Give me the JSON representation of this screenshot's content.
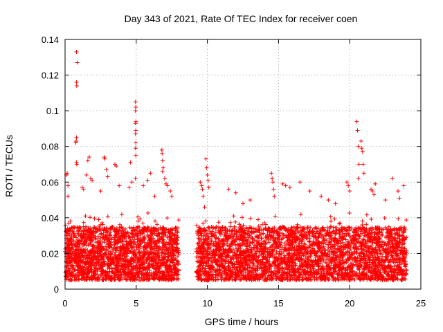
{
  "chart_data": {
    "type": "scatter",
    "title": "Day 343 of 2021, Rate Of TEC Index for receiver coen",
    "xlabel": "GPS time / hours",
    "ylabel": "ROTI / TECUs",
    "xlim": [
      0,
      25
    ],
    "ylim": [
      0,
      0.14
    ],
    "xticks": [
      0,
      5,
      10,
      15,
      20,
      25
    ],
    "yticks": [
      0,
      0.02,
      0.04,
      0.06,
      0.08,
      0.1,
      0.12,
      0.14
    ],
    "xtick_labels": [
      "0",
      "5",
      "10",
      "15",
      "20",
      "25"
    ],
    "ytick_labels": [
      "0",
      "0.02",
      "0.04",
      "0.06",
      "0.08",
      "0.1",
      "0.12",
      "0.14"
    ],
    "grid": true,
    "marker": "+",
    "color": "#ff0000",
    "data_gap_hours": [
      8.0,
      9.2
    ],
    "dense_band": {
      "x_segments": [
        [
          0,
          8.0
        ],
        [
          9.2,
          24.0
        ]
      ],
      "y_range": [
        0.005,
        0.035
      ]
    },
    "series": [
      {
        "name": "ROTI",
        "points": [
          [
            0.8,
            0.133
          ],
          [
            0.85,
            0.127
          ],
          [
            0.8,
            0.116
          ],
          [
            0.82,
            0.114
          ],
          [
            0.8,
            0.085
          ],
          [
            0.78,
            0.083
          ],
          [
            0.75,
            0.082
          ],
          [
            0.8,
            0.071
          ],
          [
            0.82,
            0.07
          ],
          [
            0.1,
            0.064
          ],
          [
            0.15,
            0.065
          ],
          [
            0.2,
            0.058
          ],
          [
            0.2,
            0.052
          ],
          [
            1.2,
            0.057
          ],
          [
            1.3,
            0.056
          ],
          [
            1.5,
            0.064
          ],
          [
            1.6,
            0.072
          ],
          [
            1.7,
            0.074
          ],
          [
            1.8,
            0.062
          ],
          [
            1.9,
            0.061
          ],
          [
            2.5,
            0.055
          ],
          [
            2.75,
            0.074
          ],
          [
            2.8,
            0.073
          ],
          [
            2.9,
            0.067
          ],
          [
            3.0,
            0.063
          ],
          [
            3.5,
            0.07
          ],
          [
            3.6,
            0.069
          ],
          [
            3.8,
            0.058
          ],
          [
            4.6,
            0.071
          ],
          [
            4.7,
            0.06
          ],
          [
            4.5,
            0.057
          ],
          [
            4.95,
            0.105
          ],
          [
            4.97,
            0.102
          ],
          [
            4.95,
            0.1
          ],
          [
            4.98,
            0.094
          ],
          [
            4.95,
            0.093
          ],
          [
            4.97,
            0.089
          ],
          [
            4.95,
            0.087
          ],
          [
            4.97,
            0.082
          ],
          [
            4.95,
            0.079
          ],
          [
            4.97,
            0.075
          ],
          [
            4.95,
            0.062
          ],
          [
            5.5,
            0.058
          ],
          [
            5.8,
            0.061
          ],
          [
            6.0,
            0.065
          ],
          [
            6.3,
            0.052
          ],
          [
            6.8,
            0.078
          ],
          [
            6.82,
            0.076
          ],
          [
            6.85,
            0.072
          ],
          [
            6.9,
            0.068
          ],
          [
            6.85,
            0.066
          ],
          [
            7.0,
            0.062
          ],
          [
            7.1,
            0.059
          ],
          [
            7.2,
            0.058
          ],
          [
            7.4,
            0.055
          ],
          [
            7.5,
            0.052
          ],
          [
            9.5,
            0.06
          ],
          [
            9.6,
            0.058
          ],
          [
            9.65,
            0.056
          ],
          [
            9.7,
            0.052
          ],
          [
            9.8,
            0.046
          ],
          [
            9.9,
            0.073
          ],
          [
            9.95,
            0.068
          ],
          [
            10.0,
            0.064
          ],
          [
            10.05,
            0.061
          ],
          [
            10.1,
            0.057
          ],
          [
            11.5,
            0.056
          ],
          [
            12.0,
            0.054
          ],
          [
            12.5,
            0.048
          ],
          [
            13.0,
            0.05
          ],
          [
            14.5,
            0.065
          ],
          [
            14.55,
            0.062
          ],
          [
            14.6,
            0.06
          ],
          [
            14.65,
            0.056
          ],
          [
            14.7,
            0.052
          ],
          [
            15.3,
            0.059
          ],
          [
            15.5,
            0.058
          ],
          [
            15.8,
            0.057
          ],
          [
            16.5,
            0.06
          ],
          [
            17.2,
            0.055
          ],
          [
            18.0,
            0.052
          ],
          [
            18.5,
            0.05
          ],
          [
            19.0,
            0.048
          ],
          [
            19.8,
            0.06
          ],
          [
            19.9,
            0.058
          ],
          [
            20.0,
            0.055
          ],
          [
            20.5,
            0.094
          ],
          [
            20.55,
            0.089
          ],
          [
            20.6,
            0.08
          ],
          [
            20.65,
            0.07
          ],
          [
            20.6,
            0.062
          ],
          [
            20.8,
            0.083
          ],
          [
            20.85,
            0.079
          ],
          [
            20.9,
            0.077
          ],
          [
            20.95,
            0.07
          ],
          [
            21.0,
            0.065
          ],
          [
            21.5,
            0.056
          ],
          [
            21.6,
            0.055
          ],
          [
            21.7,
            0.053
          ],
          [
            21.8,
            0.059
          ],
          [
            22.5,
            0.05
          ],
          [
            23.0,
            0.062
          ],
          [
            23.4,
            0.055
          ],
          [
            23.5,
            0.051
          ],
          [
            23.8,
            0.058
          ]
        ]
      }
    ]
  }
}
